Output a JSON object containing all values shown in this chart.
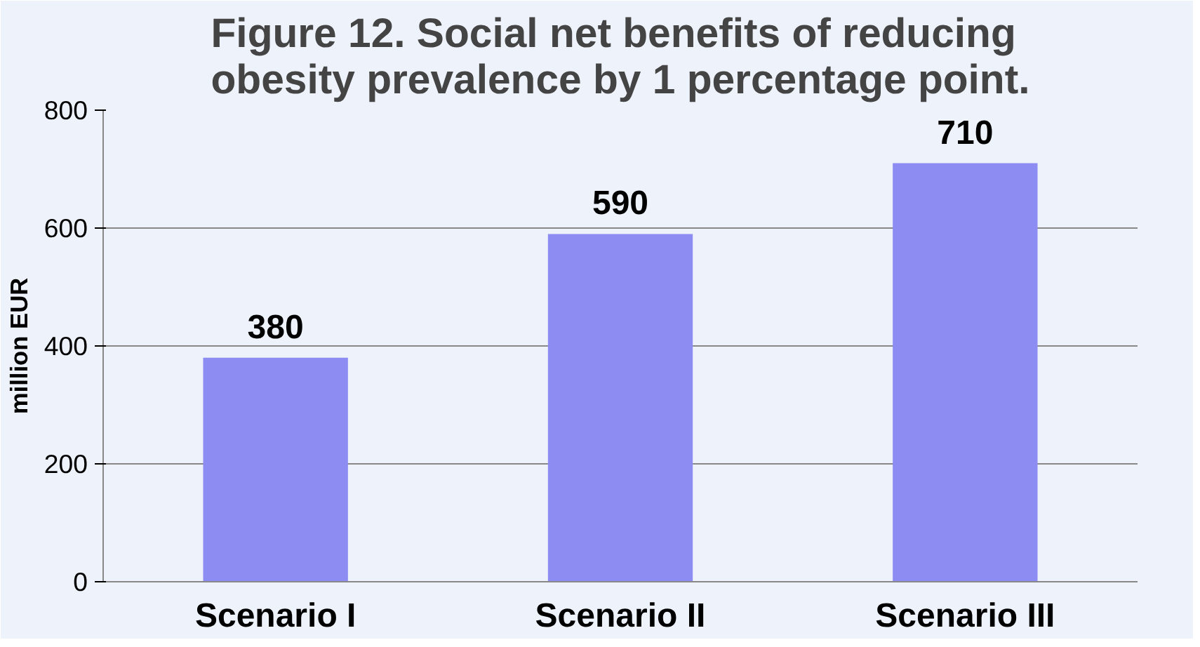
{
  "chart_data": {
    "type": "bar",
    "title": "Figure 12. Social net benefits of reducing obesity prevalence by 1 percentage point.",
    "ylabel": "million EUR",
    "categories": [
      "Scenario I",
      "Scenario II",
      "Scenario III"
    ],
    "values": [
      380,
      590,
      710
    ],
    "color": "#8c8cf2",
    "ylim": [
      0,
      800
    ],
    "yticks": [
      0,
      200,
      400,
      600,
      800
    ],
    "grid": "y",
    "data_labels": true
  }
}
